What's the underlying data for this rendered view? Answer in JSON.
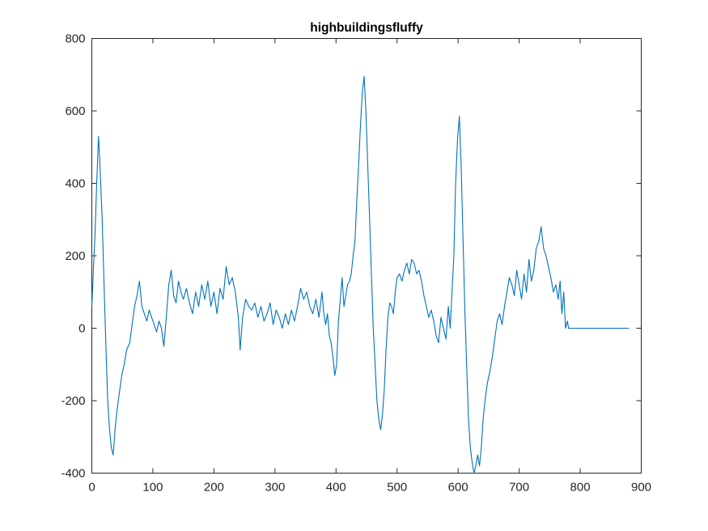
{
  "chart_data": {
    "type": "line",
    "title": "highbuildingsfluffy",
    "xlabel": "",
    "ylabel": "",
    "xlim": [
      0,
      900
    ],
    "ylim": [
      -400,
      800
    ],
    "xticks": [
      0,
      100,
      200,
      300,
      400,
      500,
      600,
      700,
      800,
      900
    ],
    "yticks": [
      -400,
      -200,
      0,
      200,
      400,
      600,
      800
    ],
    "grid": false,
    "series": [
      {
        "color": "#0072BD",
        "points": [
          [
            0,
            60
          ],
          [
            3,
            180
          ],
          [
            5,
            250
          ],
          [
            8,
            400
          ],
          [
            11,
            530
          ],
          [
            14,
            420
          ],
          [
            17,
            300
          ],
          [
            20,
            120
          ],
          [
            23,
            -50
          ],
          [
            26,
            -200
          ],
          [
            29,
            -280
          ],
          [
            32,
            -330
          ],
          [
            35,
            -350
          ],
          [
            38,
            -280
          ],
          [
            41,
            -230
          ],
          [
            45,
            -180
          ],
          [
            49,
            -130
          ],
          [
            53,
            -100
          ],
          [
            57,
            -60
          ],
          [
            62,
            -40
          ],
          [
            66,
            10
          ],
          [
            70,
            60
          ],
          [
            74,
            90
          ],
          [
            78,
            130
          ],
          [
            82,
            60
          ],
          [
            86,
            40
          ],
          [
            90,
            20
          ],
          [
            94,
            50
          ],
          [
            98,
            30
          ],
          [
            102,
            10
          ],
          [
            106,
            -10
          ],
          [
            110,
            20
          ],
          [
            114,
            0
          ],
          [
            118,
            -50
          ],
          [
            122,
            30
          ],
          [
            126,
            120
          ],
          [
            130,
            160
          ],
          [
            134,
            90
          ],
          [
            138,
            70
          ],
          [
            142,
            130
          ],
          [
            146,
            100
          ],
          [
            150,
            80
          ],
          [
            155,
            110
          ],
          [
            160,
            70
          ],
          [
            165,
            40
          ],
          [
            170,
            100
          ],
          [
            175,
            60
          ],
          [
            180,
            120
          ],
          [
            185,
            80
          ],
          [
            190,
            130
          ],
          [
            195,
            60
          ],
          [
            200,
            100
          ],
          [
            205,
            40
          ],
          [
            210,
            110
          ],
          [
            215,
            80
          ],
          [
            220,
            170
          ],
          [
            225,
            120
          ],
          [
            230,
            140
          ],
          [
            235,
            100
          ],
          [
            240,
            30
          ],
          [
            243,
            -60
          ],
          [
            247,
            30
          ],
          [
            252,
            80
          ],
          [
            257,
            60
          ],
          [
            262,
            50
          ],
          [
            267,
            70
          ],
          [
            272,
            30
          ],
          [
            277,
            60
          ],
          [
            282,
            20
          ],
          [
            287,
            40
          ],
          [
            292,
            70
          ],
          [
            297,
            10
          ],
          [
            302,
            50
          ],
          [
            307,
            30
          ],
          [
            312,
            0
          ],
          [
            317,
            40
          ],
          [
            322,
            10
          ],
          [
            327,
            50
          ],
          [
            332,
            20
          ],
          [
            337,
            60
          ],
          [
            342,
            110
          ],
          [
            347,
            80
          ],
          [
            352,
            100
          ],
          [
            357,
            60
          ],
          [
            362,
            40
          ],
          [
            367,
            80
          ],
          [
            372,
            30
          ],
          [
            377,
            100
          ],
          [
            380,
            40
          ],
          [
            383,
            10
          ],
          [
            386,
            40
          ],
          [
            389,
            -20
          ],
          [
            392,
            -40
          ],
          [
            395,
            -80
          ],
          [
            398,
            -130
          ],
          [
            401,
            -100
          ],
          [
            404,
            20
          ],
          [
            407,
            80
          ],
          [
            410,
            140
          ],
          [
            413,
            60
          ],
          [
            416,
            90
          ],
          [
            419,
            120
          ],
          [
            422,
            130
          ],
          [
            425,
            150
          ],
          [
            428,
            200
          ],
          [
            431,
            240
          ],
          [
            434,
            350
          ],
          [
            437,
            450
          ],
          [
            440,
            560
          ],
          [
            443,
            650
          ],
          [
            446,
            695
          ],
          [
            449,
            600
          ],
          [
            452,
            450
          ],
          [
            455,
            300
          ],
          [
            458,
            150
          ],
          [
            461,
            0
          ],
          [
            464,
            -100
          ],
          [
            467,
            -200
          ],
          [
            470,
            -250
          ],
          [
            473,
            -280
          ],
          [
            476,
            -240
          ],
          [
            479,
            -170
          ],
          [
            482,
            -60
          ],
          [
            485,
            30
          ],
          [
            488,
            70
          ],
          [
            491,
            60
          ],
          [
            494,
            40
          ],
          [
            497,
            100
          ],
          [
            500,
            140
          ],
          [
            504,
            150
          ],
          [
            508,
            130
          ],
          [
            512,
            160
          ],
          [
            516,
            180
          ],
          [
            520,
            150
          ],
          [
            524,
            190
          ],
          [
            528,
            180
          ],
          [
            532,
            150
          ],
          [
            536,
            160
          ],
          [
            540,
            130
          ],
          [
            544,
            90
          ],
          [
            548,
            60
          ],
          [
            552,
            30
          ],
          [
            556,
            50
          ],
          [
            560,
            20
          ],
          [
            564,
            -20
          ],
          [
            568,
            -40
          ],
          [
            572,
            30
          ],
          [
            576,
            0
          ],
          [
            580,
            -30
          ],
          [
            584,
            60
          ],
          [
            587,
            0
          ],
          [
            590,
            100
          ],
          [
            593,
            200
          ],
          [
            596,
            400
          ],
          [
            599,
            520
          ],
          [
            602,
            585
          ],
          [
            605,
            450
          ],
          [
            608,
            250
          ],
          [
            611,
            50
          ],
          [
            614,
            -100
          ],
          [
            617,
            -250
          ],
          [
            620,
            -330
          ],
          [
            623,
            -370
          ],
          [
            626,
            -400
          ],
          [
            629,
            -380
          ],
          [
            632,
            -350
          ],
          [
            635,
            -380
          ],
          [
            638,
            -330
          ],
          [
            641,
            -250
          ],
          [
            644,
            -200
          ],
          [
            648,
            -150
          ],
          [
            652,
            -120
          ],
          [
            656,
            -80
          ],
          [
            660,
            -30
          ],
          [
            664,
            20
          ],
          [
            668,
            40
          ],
          [
            672,
            10
          ],
          [
            676,
            60
          ],
          [
            680,
            100
          ],
          [
            684,
            140
          ],
          [
            688,
            120
          ],
          [
            692,
            90
          ],
          [
            696,
            160
          ],
          [
            700,
            120
          ],
          [
            704,
            80
          ],
          [
            708,
            150
          ],
          [
            712,
            100
          ],
          [
            716,
            190
          ],
          [
            720,
            130
          ],
          [
            724,
            160
          ],
          [
            728,
            220
          ],
          [
            732,
            240
          ],
          [
            736,
            280
          ],
          [
            740,
            220
          ],
          [
            744,
            200
          ],
          [
            748,
            170
          ],
          [
            752,
            140
          ],
          [
            756,
            100
          ],
          [
            760,
            120
          ],
          [
            764,
            80
          ],
          [
            767,
            130
          ],
          [
            770,
            40
          ],
          [
            773,
            100
          ],
          [
            776,
            0
          ],
          [
            779,
            20
          ],
          [
            781,
            0
          ],
          [
            800,
            0
          ],
          [
            840,
            0
          ],
          [
            880,
            0
          ]
        ]
      }
    ]
  }
}
